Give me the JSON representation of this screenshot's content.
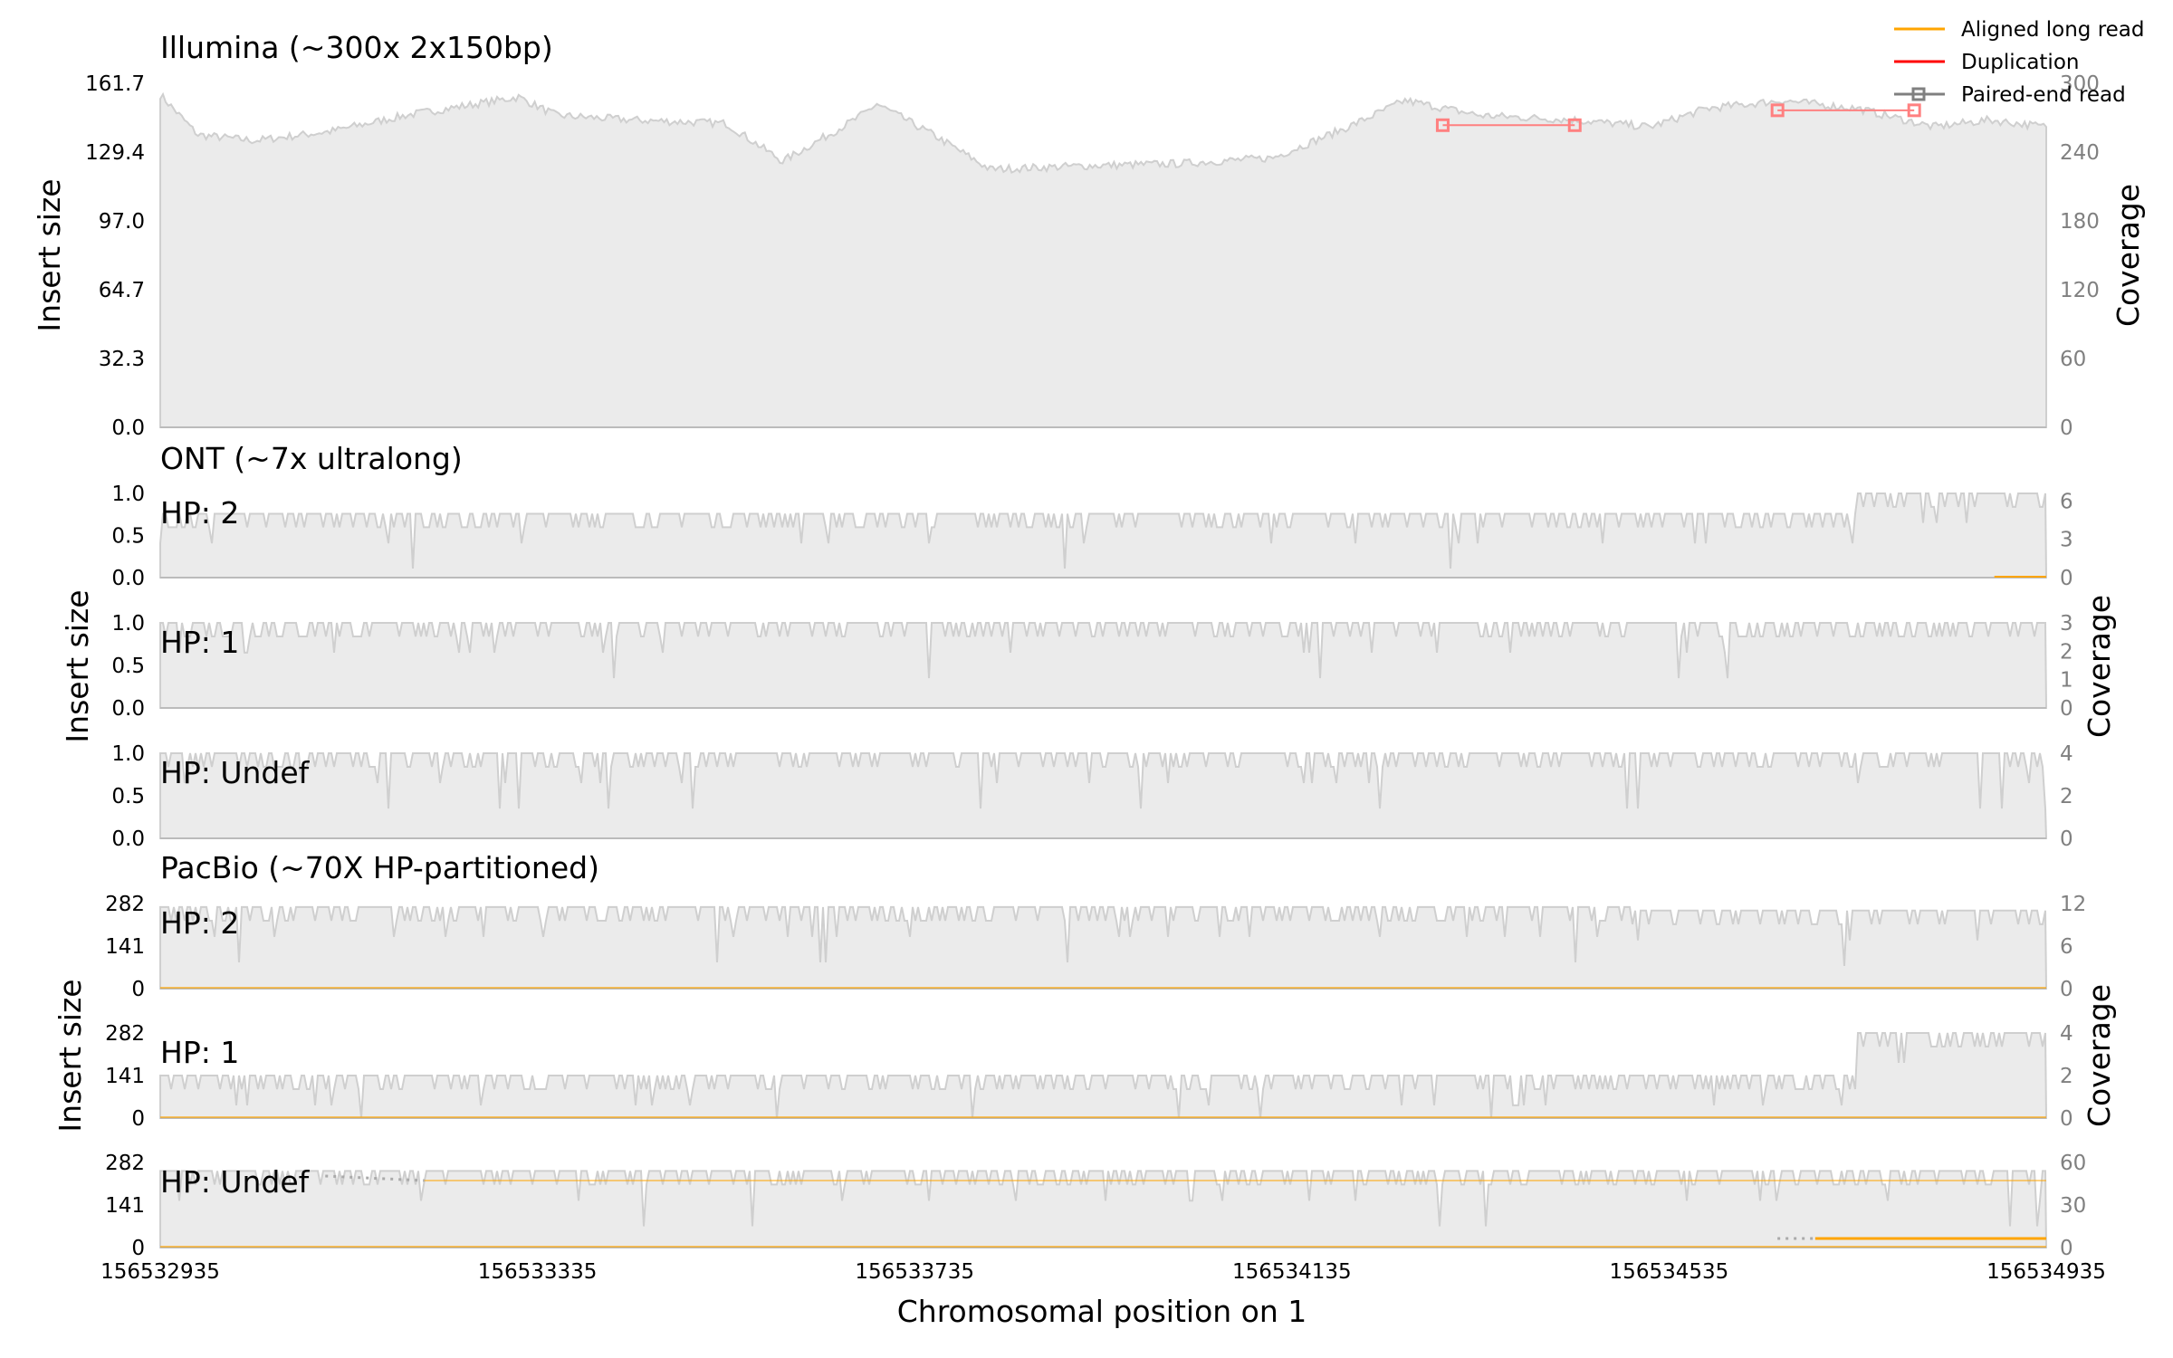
{
  "chart_data": {
    "type": "area",
    "xlabel": "Chromosomal position on 1",
    "xlim": [
      156532935,
      156534935
    ],
    "xticks": [
      "156532935",
      "156533335",
      "156533735",
      "156534135",
      "156534535",
      "156534935"
    ],
    "legend": {
      "placement": "top-right",
      "entries": [
        {
          "label": "Aligned long read",
          "color": "#ffa500",
          "style": "line"
        },
        {
          "label": "Duplication",
          "color": "#ff0000",
          "style": "line"
        },
        {
          "label": "Paired-end read",
          "color": "#808080",
          "style": "line-square-marker"
        }
      ]
    },
    "colors": {
      "coverage_fill": "#ebebeb",
      "coverage_line": "#cfcfcf",
      "duplication": "#ff0000",
      "long_read": "#ffa500",
      "paired_marker": "#ff8080"
    },
    "groups": [
      {
        "title": "Illumina (~300x 2x150bp)",
        "ylabel": "Insert size",
        "y2label": "Coverage",
        "panels": [
          {
            "label": "",
            "yticks": [
              "0.0",
              "32.3",
              "64.7",
              "97.0",
              "129.4",
              "161.7"
            ],
            "ylim": [
              0,
              161.7
            ],
            "y2ticks": [
              "0",
              "60",
              "120",
              "180",
              "240",
              "300"
            ],
            "y2lim": [
              0,
              300
            ],
            "coverage_profile": [
              [
                156532935,
                290
              ],
              [
                156532975,
                255
              ],
              [
                156533035,
                250
              ],
              [
                156533115,
                258
              ],
              [
                156533195,
                272
              ],
              [
                156533315,
                288
              ],
              [
                156533355,
                272
              ],
              [
                156533435,
                268
              ],
              [
                156533535,
                265
              ],
              [
                156533595,
                232
              ],
              [
                156533675,
                270
              ],
              [
                156533695,
                282
              ],
              [
                156533755,
                255
              ],
              [
                156533815,
                225
              ],
              [
                156533915,
                228
              ],
              [
                156534015,
                230
              ],
              [
                156534115,
                235
              ],
              [
                156534195,
                262
              ],
              [
                156534255,
                285
              ],
              [
                156534335,
                272
              ],
              [
                156534435,
                268
              ],
              [
                156534515,
                262
              ],
              [
                156534575,
                278
              ],
              [
                156534655,
                285
              ],
              [
                156534735,
                278
              ],
              [
                156534815,
                262
              ],
              [
                156534875,
                268
              ],
              [
                156534935,
                262
              ]
            ],
            "paired_end_reads": [
              {
                "start": 156534295,
                "end": 156534435,
                "insert_size": 142
              },
              {
                "start": 156534650,
                "end": 156534795,
                "insert_size": 149
              }
            ]
          }
        ]
      },
      {
        "title": "ONT (~7x ultralong)",
        "ylabel": "Insert size",
        "y2label": "Coverage",
        "panels": [
          {
            "label": "HP: 2",
            "yticks": [
              "0.0",
              "0.5",
              "1.0"
            ],
            "ylim": [
              0,
              1.0
            ],
            "y2ticks": [
              "0",
              "3",
              "6"
            ],
            "y2lim": [
              0,
              6.6
            ],
            "coverage_level": 5,
            "coverage_end_level": 6.6,
            "long_read_at_end": true
          },
          {
            "label": "HP: 1",
            "yticks": [
              "0.0",
              "0.5",
              "1.0"
            ],
            "ylim": [
              0,
              1.0
            ],
            "y2ticks": [
              "0",
              "1",
              "2",
              "3"
            ],
            "y2lim": [
              0,
              3
            ],
            "coverage_level": 3
          },
          {
            "label": "HP: Undef",
            "yticks": [
              "0.0",
              "0.5",
              "1.0"
            ],
            "ylim": [
              0,
              1.0
            ],
            "y2ticks": [
              "0",
              "2",
              "4"
            ],
            "y2lim": [
              0,
              4
            ],
            "coverage_level": 4
          }
        ]
      },
      {
        "title": "PacBio (~70X HP-partitioned)",
        "ylabel": "Insert size",
        "y2label": "Coverage",
        "panels": [
          {
            "label": "HP: 2",
            "yticks": [
              "0",
              "141",
              "282"
            ],
            "ylim": [
              0,
              282
            ],
            "y2ticks": [
              "0",
              "6",
              "12"
            ],
            "y2lim": [
              0,
              12
            ],
            "coverage_level": 11.5,
            "coverage_end_level": 11,
            "long_read_baseline": true
          },
          {
            "label": "HP: 1",
            "yticks": [
              "0",
              "141",
              "282"
            ],
            "ylim": [
              0,
              282
            ],
            "y2ticks": [
              "0",
              "2",
              "4"
            ],
            "y2lim": [
              0,
              4
            ],
            "coverage_level": 2,
            "coverage_end_level": 4,
            "long_read_baseline": true
          },
          {
            "label": "HP: Undef",
            "yticks": [
              "0",
              "141",
              "282"
            ],
            "ylim": [
              0,
              282
            ],
            "y2ticks": [
              "0",
              "30",
              "60"
            ],
            "y2lim": [
              0,
              60
            ],
            "coverage_level": 54,
            "long_read_baseline": true,
            "long_read_upper": true,
            "long_read_late": true
          }
        ]
      }
    ]
  }
}
